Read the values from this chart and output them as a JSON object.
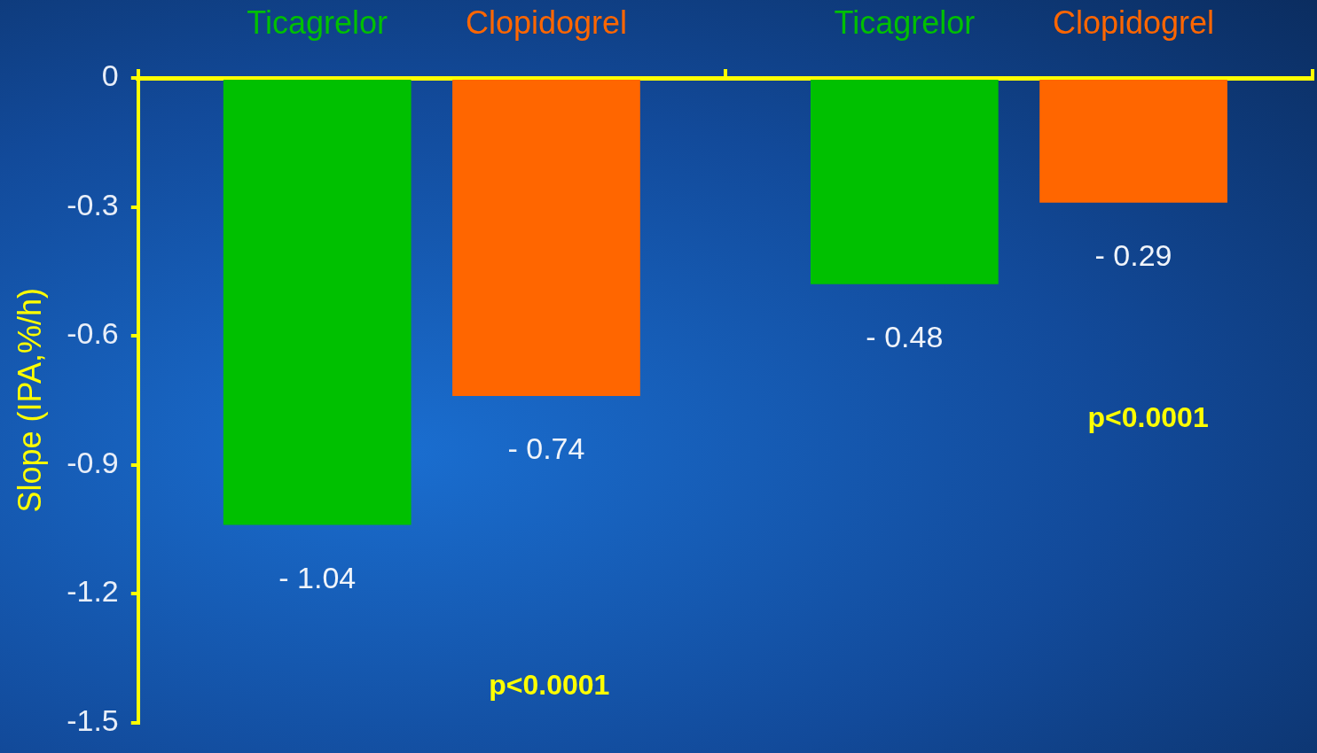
{
  "chart_data": {
    "type": "bar",
    "ylabel": "Slope (IPA,%/h)",
    "categories": [
      null,
      null
    ],
    "series": [
      {
        "name": "Ticagrelor",
        "color": "#00c000",
        "values": [
          -1.04,
          -0.48
        ],
        "value_labels": [
          "- 1.04",
          "- 0.48"
        ]
      },
      {
        "name": "Clopidogrel",
        "color": "#ff6600",
        "values": [
          -0.74,
          -0.29
        ],
        "value_labels": [
          "- 0.74",
          "- 0.29"
        ]
      }
    ],
    "ylim": [
      -1.5,
      0
    ],
    "yticks": [
      -1.5,
      -1.2,
      -0.9,
      -0.6,
      -0.3,
      0
    ],
    "annotations": [
      "p<0.0001",
      "p<0.0001"
    ],
    "tick_labels": "y",
    "grid": false,
    "legend": false
  }
}
